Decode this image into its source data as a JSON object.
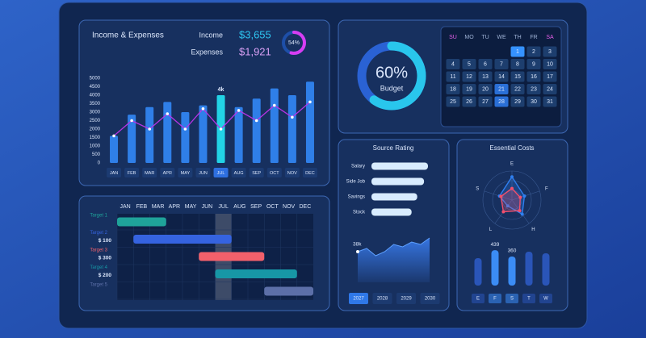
{
  "chart_data": [
    {
      "type": "combo",
      "title": "Income & Expenses",
      "kpis": [
        {
          "label": "Income",
          "value": "$3,655",
          "color": "#2ec5f0"
        },
        {
          "label": "Expenses",
          "value": "$1,921",
          "color": "#d9a0f5"
        }
      ],
      "categories": [
        "JAN",
        "FEB",
        "MAR",
        "APR",
        "MAY",
        "JUN",
        "JUL",
        "AUG",
        "SEP",
        "OCT",
        "NOV",
        "DEC"
      ],
      "series": [
        {
          "type": "bar",
          "color": "#2f7fe8",
          "values": [
            1600,
            2850,
            3300,
            3600,
            3000,
            3400,
            4000,
            3300,
            3800,
            4400,
            4000,
            4800
          ],
          "value_labels": [
            null,
            null,
            null,
            null,
            null,
            null,
            "4k",
            null,
            null,
            null,
            null,
            null
          ]
        },
        {
          "type": "line",
          "color": "#b833e6",
          "values": [
            1600,
            2500,
            2000,
            2900,
            2000,
            3200,
            2000,
            3100,
            2500,
            3400,
            2700,
            3600
          ]
        }
      ],
      "highlight_index": 6,
      "highlight_color": "#22d3e6",
      "ylim": [
        0,
        5000
      ],
      "yticks": [
        0,
        500,
        1000,
        1500,
        2000,
        2500,
        3000,
        3500,
        4000,
        4500,
        5000
      ]
    },
    {
      "type": "donut",
      "value": 54,
      "value_label": "54%",
      "color": "#d63df2",
      "track_color": "#1e4fa8"
    },
    {
      "type": "donut",
      "value": 60,
      "value_label": "60%",
      "label": "Budget",
      "color": "#29c6ec",
      "track_color": "#2a62d4"
    },
    {
      "type": "gantt",
      "categories": [
        "JAN",
        "FEB",
        "MAR",
        "APR",
        "MAY",
        "JUN",
        "JUL",
        "AUG",
        "SEP",
        "OCT",
        "NOV",
        "DEC"
      ],
      "xlim": [
        0,
        12
      ],
      "highlight_index": 6,
      "tasks": [
        {
          "name": "Target 1",
          "color": "#1fa39a",
          "start": 0,
          "end": 3
        },
        {
          "name": "Target 2",
          "amount": "$ 100",
          "color": "#3563e0",
          "start": 1,
          "end": 7
        },
        {
          "name": "Target 3",
          "amount": "$ 300",
          "color": "#f2606b",
          "start": 5,
          "end": 9
        },
        {
          "name": "Target 4",
          "amount": "$ 200",
          "color": "#1797a6",
          "start": 6,
          "end": 11
        },
        {
          "name": "Target 5",
          "color": "#5c6fa8",
          "start": 9,
          "end": 12
        }
      ]
    },
    {
      "type": "hbar",
      "title": "Source Rating",
      "categories": [
        "Salary",
        "Side Job",
        "Savings",
        "Stock"
      ],
      "values": [
        100,
        93,
        81,
        71
      ],
      "xlim": [
        0,
        100
      ],
      "color": "#d8ecff"
    },
    {
      "type": "area",
      "values": [
        38000,
        42000,
        33000,
        38000,
        47000,
        44000,
        50000,
        47000,
        55000
      ],
      "value_labels": [
        "38k",
        null,
        null,
        null,
        null,
        null,
        null,
        null,
        null
      ],
      "ylim": [
        0,
        60000
      ],
      "color": "#3a7df0",
      "tabs": [
        "2027",
        "2028",
        "2029",
        "2030"
      ],
      "active_tab": 0
    },
    {
      "type": "radar",
      "title": "Essential Costs",
      "categories": [
        "E",
        "F",
        "H",
        "L",
        "S"
      ],
      "rlim": [
        0,
        100
      ],
      "series": [
        {
          "color": "#2f7ff0",
          "values": [
            80,
            45,
            60,
            25,
            45
          ]
        },
        {
          "color": "#f0506e",
          "values": [
            40,
            30,
            45,
            50,
            40
          ]
        }
      ]
    },
    {
      "type": "bar",
      "categories": [
        "E",
        "F",
        "S",
        "T",
        "W"
      ],
      "values": [
        340,
        439,
        360,
        420,
        400
      ],
      "value_labels": [
        null,
        "439",
        "360",
        null,
        null
      ],
      "colors": [
        "#2a55b8",
        "#3b8cf5",
        "#3b8cf5",
        "#2a55b8",
        "#2a55b8"
      ],
      "ylim": [
        0,
        500
      ]
    }
  ],
  "calendar": {
    "weekdays": [
      "SU",
      "MO",
      "TU",
      "WE",
      "TH",
      "FR",
      "SA"
    ],
    "weekday_colors": [
      "#e35ee8",
      "#9fb3d6",
      "#9fb3d6",
      "#9fb3d6",
      "#9fb3d6",
      "#9fb3d6",
      "#e35ee8"
    ],
    "weeks": [
      [
        null,
        null,
        null,
        null,
        {
          "day": 1,
          "selected": true
        },
        {
          "day": 2
        },
        {
          "day": 3
        }
      ],
      [
        {
          "day": 4
        },
        {
          "day": 5
        },
        {
          "day": 6
        },
        {
          "day": 7
        },
        {
          "day": 8
        },
        {
          "day": 9
        },
        {
          "day": 10
        }
      ],
      [
        {
          "day": 11
        },
        {
          "day": 12
        },
        {
          "day": 13
        },
        {
          "day": 14
        },
        {
          "day": 15
        },
        {
          "day": 16
        },
        {
          "day": 17
        }
      ],
      [
        {
          "day": 18
        },
        {
          "day": 19
        },
        {
          "day": 20
        },
        {
          "day": 21,
          "selected": true
        },
        {
          "day": 22
        },
        {
          "day": 23
        },
        {
          "day": 24
        }
      ],
      [
        {
          "day": 25
        },
        {
          "day": 26
        },
        {
          "day": 27
        },
        {
          "day": 28,
          "selected": true
        },
        {
          "day": 29
        },
        {
          "day": 30
        },
        {
          "day": 31
        }
      ]
    ]
  }
}
